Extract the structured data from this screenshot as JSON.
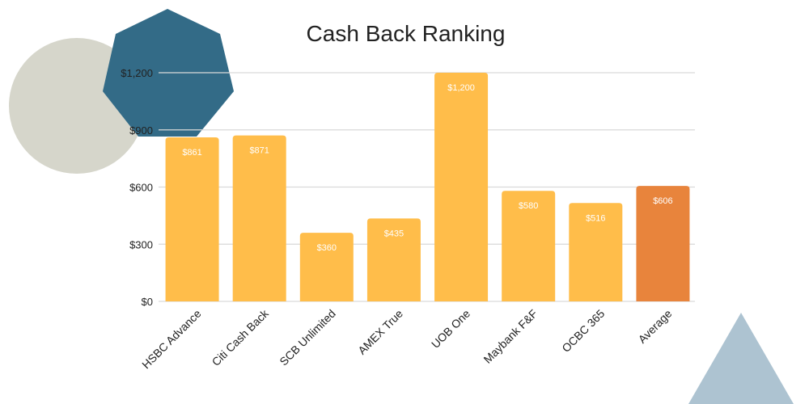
{
  "chart_data": {
    "type": "bar",
    "title": "Cash Back Ranking",
    "categories": [
      "HSBC Advance",
      "Citi Cash Back",
      "SCB Unlimited",
      "AMEX True",
      "UOB One",
      "Maybank F&F",
      "OCBC 365",
      "Average"
    ],
    "values": [
      861,
      871,
      360,
      435,
      1200,
      580,
      516,
      606
    ],
    "value_labels": [
      "$861",
      "$871",
      "$360",
      "$435",
      "$1,200",
      "$580",
      "$516",
      "$606"
    ],
    "ylim": [
      0,
      1200
    ],
    "yticks": [
      0,
      300,
      600,
      900,
      1200
    ],
    "ytick_labels": [
      "$0",
      "$300",
      "$600",
      "$900",
      "$1,200"
    ],
    "xlabel": "",
    "ylabel": "",
    "grid": true,
    "legend": "none",
    "colors": {
      "bar": "#FFBD4A",
      "highlight": "#E8843C",
      "grid": "#D9D9D9",
      "text": "#222222"
    }
  },
  "decorations": {
    "circle_color": "#D6D6CB",
    "heptagon_color": "#336B87",
    "triangle_color": "#ADC3D1"
  }
}
